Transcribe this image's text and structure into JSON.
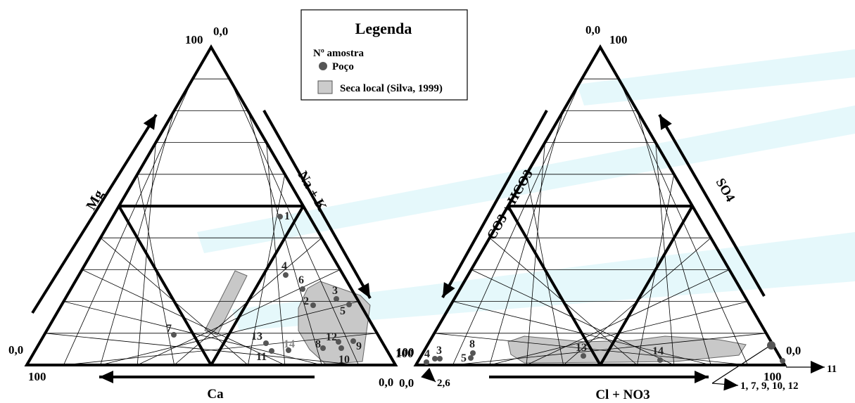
{
  "legend": {
    "title": "Legenda",
    "sample_label": "Nº amostra",
    "well_label": "Poço",
    "area_label": "Seca local (Silva, 1999)"
  },
  "colors": {
    "line": "#000000",
    "point": "#555555",
    "area_fill": "#c8c8c8",
    "area_stroke": "#666666",
    "watermark": "#6fd8ea"
  },
  "cation_triangle": {
    "axis_mg": "Mg",
    "axis_nak": "Na + K",
    "axis_ca": "Ca",
    "label_top_100": "100",
    "label_top_0": "0,0",
    "label_left_0": "0,0",
    "label_left_100": "100",
    "label_right_100": "100",
    "label_right_0": "0,0",
    "samples": [
      {
        "id": "1",
        "label": "1"
      },
      {
        "id": "2",
        "label": "2"
      },
      {
        "id": "3",
        "label": "3"
      },
      {
        "id": "4",
        "label": "4"
      },
      {
        "id": "5",
        "label": "5"
      },
      {
        "id": "6",
        "label": "6"
      },
      {
        "id": "7",
        "label": "7"
      },
      {
        "id": "8",
        "label": "8"
      },
      {
        "id": "9",
        "label": "9"
      },
      {
        "id": "10",
        "label": "10"
      },
      {
        "id": "11",
        "label": "11"
      },
      {
        "id": "12",
        "label": "12"
      },
      {
        "id": "13",
        "label": "13"
      },
      {
        "id": "14",
        "label": "14"
      }
    ]
  },
  "anion_triangle": {
    "axis_co3": "CO3 + HCO3",
    "axis_so4": "SO4",
    "axis_cl": "Cl + NO3",
    "label_top_0": "0,0",
    "label_top_100": "100",
    "label_left_100": "100",
    "label_left_0": "0,0",
    "label_right_0": "0,0",
    "label_right_100": "100",
    "note_26": "2,6",
    "note_11": "11",
    "note_group": "1, 7, 9, 10, 12",
    "samples": [
      {
        "id": "4",
        "label": "4"
      },
      {
        "id": "3",
        "label": "3"
      },
      {
        "id": "8",
        "label": "8"
      },
      {
        "id": "5",
        "label": "5"
      },
      {
        "id": "13",
        "label": "13"
      },
      {
        "id": "14",
        "label": "14"
      }
    ]
  }
}
